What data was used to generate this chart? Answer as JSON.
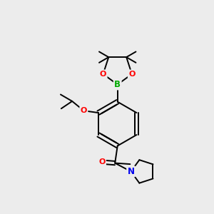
{
  "background_color": "#ececec",
  "bond_color": "#000000",
  "atom_colors": {
    "B": "#00aa00",
    "O": "#ff0000",
    "N": "#0000ee",
    "C": "#000000"
  },
  "figsize": [
    3.0,
    3.0
  ],
  "dpi": 100
}
